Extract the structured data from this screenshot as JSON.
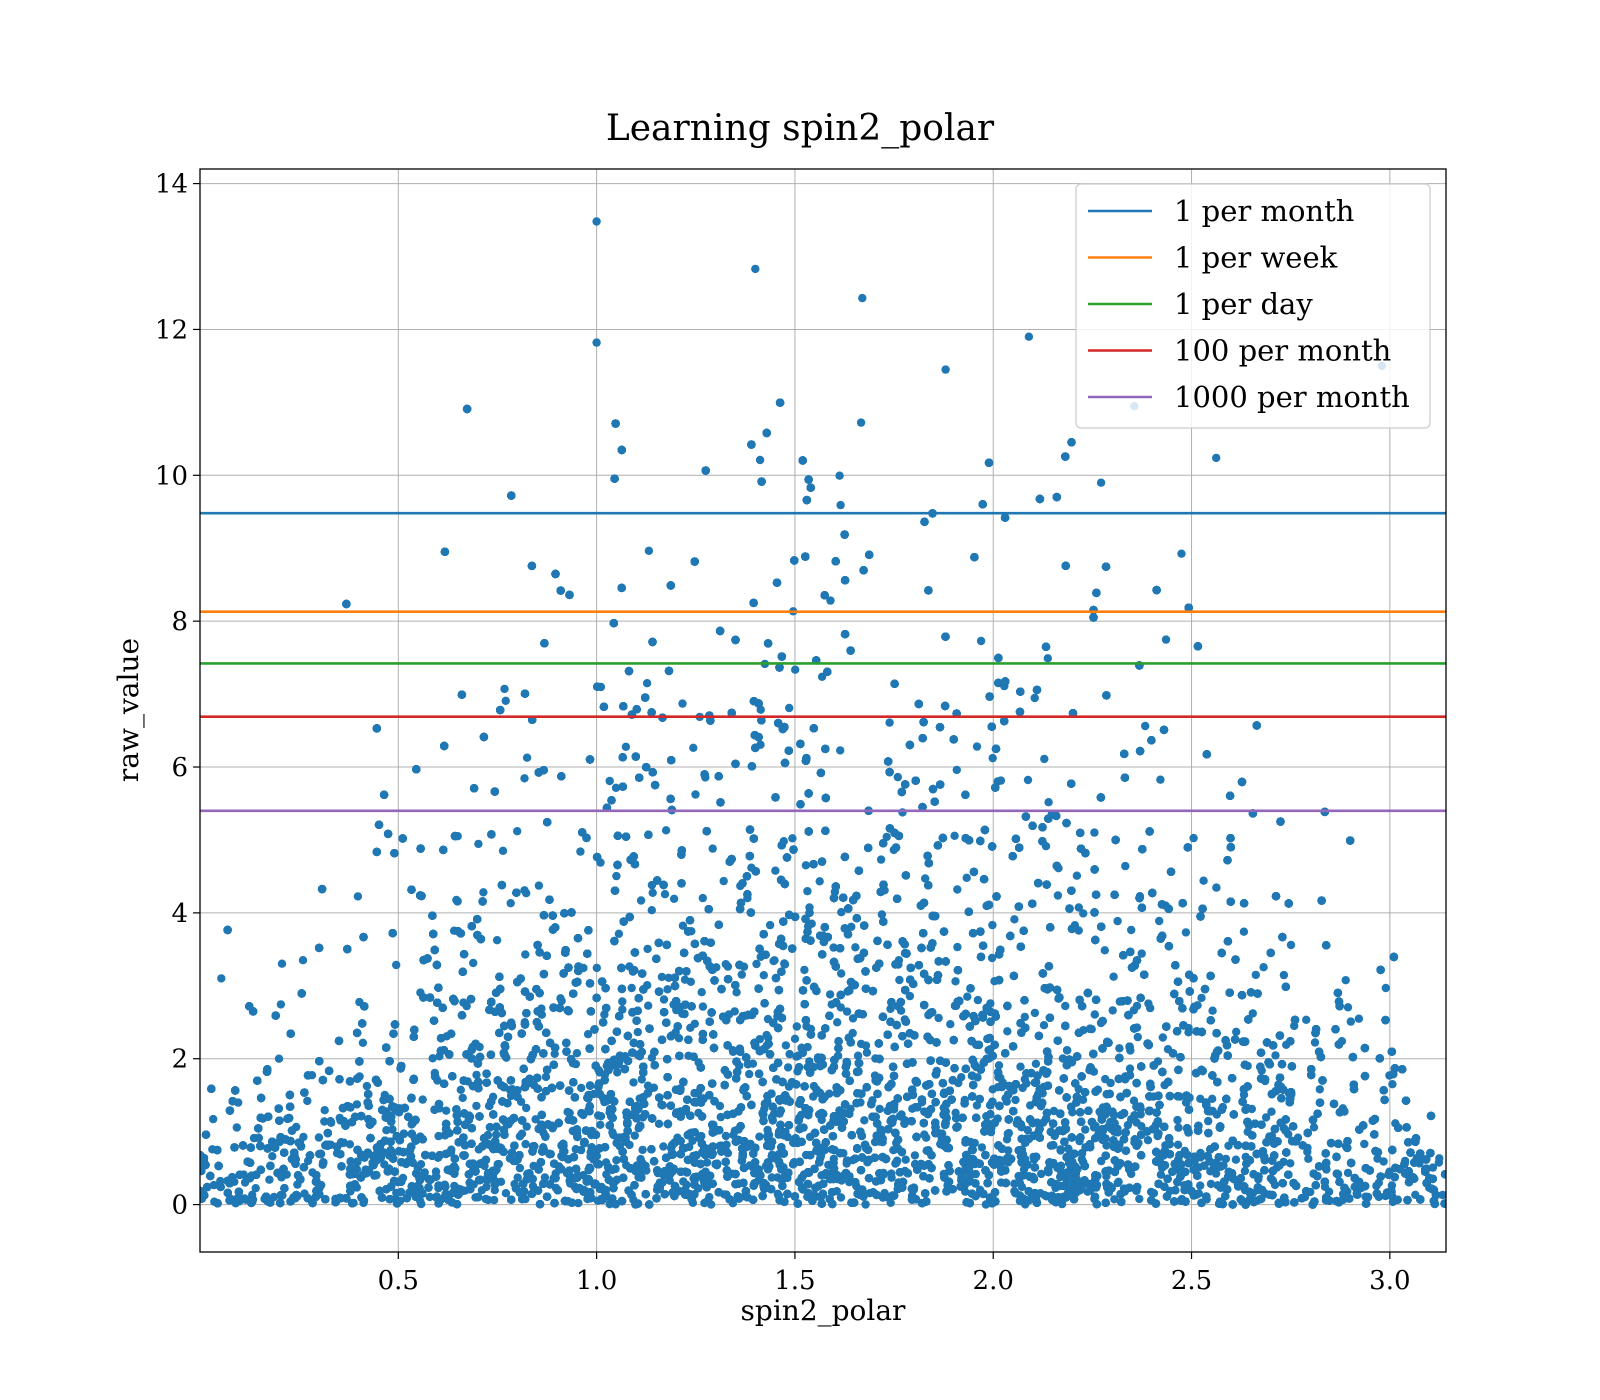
{
  "chart_data": {
    "type": "scatter",
    "title": "Learning spin2_polar",
    "xlabel": "spin2_polar",
    "ylabel": "raw_value",
    "xlim": [
      0.0,
      3.1416
    ],
    "ylim": [
      -0.65,
      14.2
    ],
    "x_ticks": [
      0.5,
      1.0,
      1.5,
      2.0,
      2.5,
      3.0
    ],
    "x_tick_labels": [
      "0.5",
      "1.0",
      "1.5",
      "2.0",
      "2.5",
      "3.0"
    ],
    "y_ticks": [
      0,
      2,
      4,
      6,
      8,
      10,
      12,
      14
    ],
    "y_tick_labels": [
      "0",
      "2",
      "4",
      "6",
      "8",
      "10",
      "12",
      "14"
    ],
    "grid": true,
    "legend_position": "top-right",
    "scatter_color": "#1f77b4",
    "point_count_estimate": 20000,
    "point_distribution": "dense band from 0 to about 4 concentrated near x = 1.0–2.2, thinning upward to about 11; values symmetric about x ≈ 1.57",
    "outliers": [
      {
        "x": 1.0,
        "y": 13.48
      },
      {
        "x": 1.4,
        "y": 12.83
      },
      {
        "x": 1.67,
        "y": 12.43
      },
      {
        "x": 1.0,
        "y": 11.82
      },
      {
        "x": 2.09,
        "y": 11.9
      },
      {
        "x": 1.88,
        "y": 11.45
      },
      {
        "x": 2.98,
        "y": 11.5
      }
    ],
    "threshold_lines": [
      {
        "name": "1 per month",
        "y": 9.48,
        "color": "#1f77b4"
      },
      {
        "name": "1 per week",
        "y": 8.13,
        "color": "#ff7f0e"
      },
      {
        "name": "1 per day",
        "y": 7.42,
        "color": "#2ca02c"
      },
      {
        "name": "100 per month",
        "y": 6.69,
        "color": "#d62728"
      },
      {
        "name": "1000 per month",
        "y": 5.4,
        "color": "#9467bd"
      }
    ]
  }
}
